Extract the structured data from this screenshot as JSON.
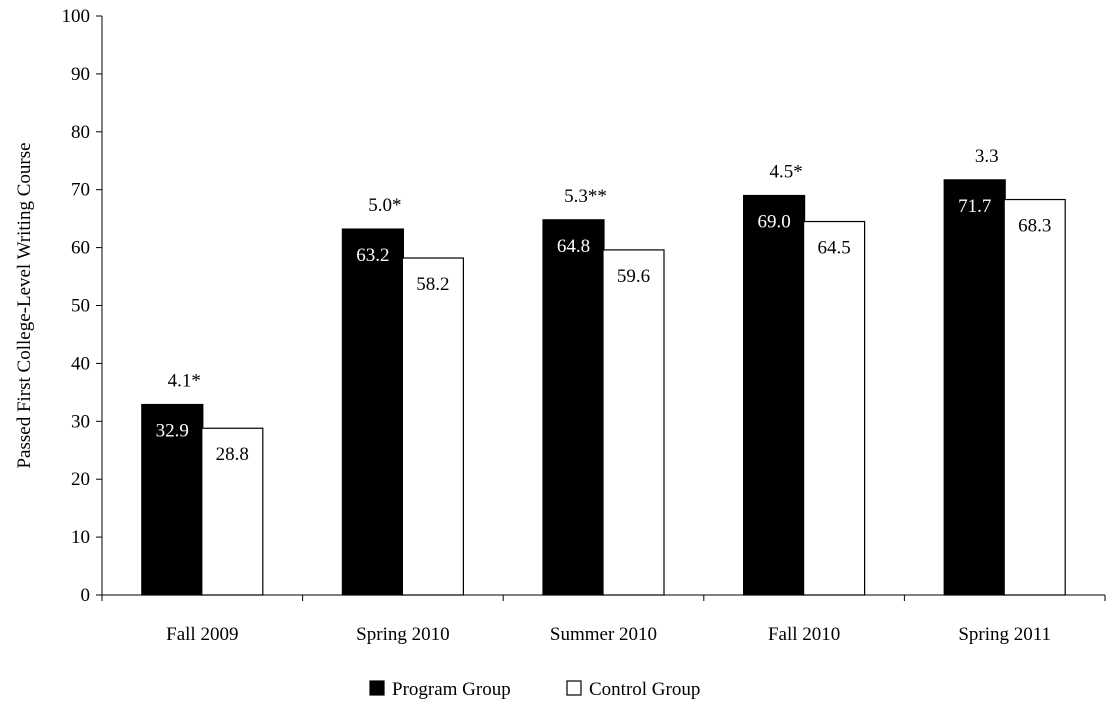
{
  "chart_data": {
    "type": "bar",
    "ylabel": "Passed First College-Level Writing Course",
    "xlabel": "",
    "ylim": [
      0,
      100
    ],
    "yticks": [
      0,
      10,
      20,
      30,
      40,
      50,
      60,
      70,
      80,
      90,
      100
    ],
    "categories": [
      "Fall 2009",
      "Spring 2010",
      "Summer 2010",
      "Fall 2010",
      "Spring 2011"
    ],
    "series": [
      {
        "name": "Program Group",
        "values": [
          32.9,
          63.2,
          64.8,
          69.0,
          71.7
        ],
        "color": "#000000",
        "label_color": "#ffffff"
      },
      {
        "name": "Control Group",
        "values": [
          28.8,
          58.2,
          59.6,
          64.5,
          68.3
        ],
        "color": "#ffffff",
        "label_color": "#000000"
      }
    ],
    "value_labels": [
      [
        "32.9",
        "63.2",
        "64.8",
        "69.0",
        "71.7"
      ],
      [
        "28.8",
        "58.2",
        "59.6",
        "64.5",
        "68.3"
      ]
    ],
    "difference_labels": [
      "4.1*",
      "5.0*",
      "5.3**",
      "4.5*",
      "3.3"
    ],
    "legend_position": "bottom",
    "grid": false
  }
}
